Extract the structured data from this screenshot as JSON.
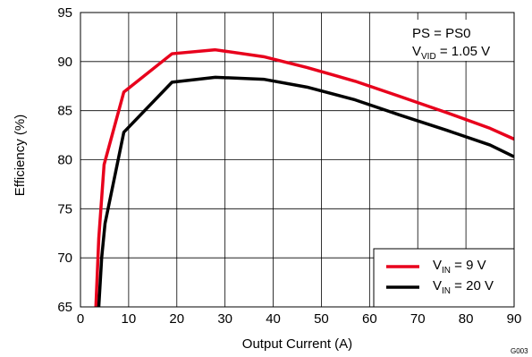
{
  "chart_data": {
    "type": "line",
    "xlabel": "Output Current (A)",
    "ylabel": "Efficiency (%)",
    "xlim": [
      0,
      90
    ],
    "ylim": [
      65,
      95
    ],
    "xticks": [
      "0",
      "10",
      "20",
      "30",
      "40",
      "50",
      "60",
      "70",
      "80",
      "90"
    ],
    "yticks": [
      "65",
      "70",
      "75",
      "80",
      "85",
      "90",
      "95"
    ],
    "grid": true,
    "annotation": {
      "line1": "PS = PS0",
      "line2_prefix": "V",
      "line2_sub": "VID",
      "line2_suffix": " = 1.05 V"
    },
    "legend_position": "bottom-right",
    "series": [
      {
        "name_prefix": "V",
        "name_sub": "IN",
        "name_suffix": " = 9 V",
        "color": "#e8001c",
        "x": [
          3.2,
          3.8,
          4.9,
          9,
          19,
          28,
          38,
          47,
          57,
          66,
          76,
          85,
          90
        ],
        "y": [
          65,
          72,
          79.5,
          86.9,
          90.8,
          91.2,
          90.5,
          89.4,
          88.0,
          86.5,
          84.8,
          83.2,
          82.1
        ]
      },
      {
        "name_prefix": "V",
        "name_sub": "IN",
        "name_suffix": " = 20 V",
        "color": "#000000",
        "x": [
          3.8,
          4.4,
          5.1,
          9,
          19,
          28,
          38,
          47,
          57,
          66,
          76,
          85,
          90
        ],
        "y": [
          65,
          70,
          73.5,
          82.8,
          87.9,
          88.4,
          88.2,
          87.4,
          86.1,
          84.6,
          83.0,
          81.5,
          80.3
        ]
      }
    ],
    "corner_code": "G003"
  }
}
